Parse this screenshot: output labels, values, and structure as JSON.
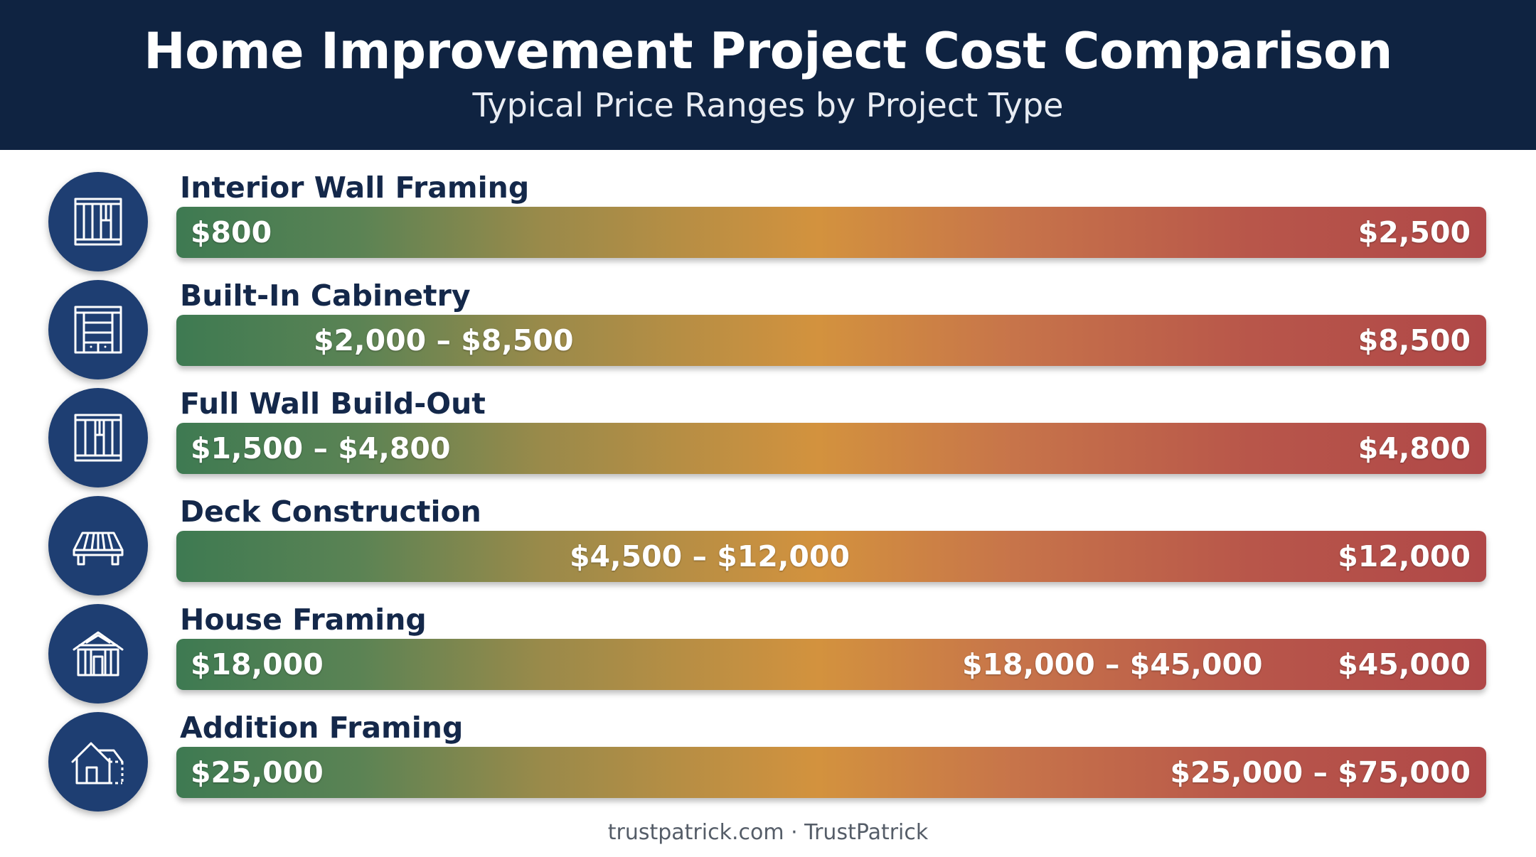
{
  "header": {
    "title": "Home Improvement Project Cost Comparison",
    "subtitle": "Typical Price Ranges by Project Type"
  },
  "footer": {
    "text": "trustpatrick.com · TrustPatrick"
  },
  "colors": {
    "header_bg": "#0f2341",
    "icon_bg": "#1e3e72",
    "label": "#14284a",
    "gradient_low": "#3e7a52",
    "gradient_mid": "#d3923e",
    "gradient_high": "#b04848"
  },
  "chart_data": {
    "type": "bar",
    "title": "Home Improvement Project Cost Comparison",
    "subtitle": "Typical Price Ranges by Project Type",
    "unit": "USD",
    "categories": [
      "Interior Wall Framing",
      "Built-In Cabinetry",
      "Full Wall Build-Out",
      "Deck Construction",
      "House Framing",
      "Addition Framing"
    ],
    "projects": [
      {
        "name": "Interior Wall Framing",
        "icon": "wall-frame-icon",
        "min": 800,
        "max": 2500,
        "labels": [
          {
            "text": "$800",
            "at": "left"
          },
          {
            "text": "$2,500",
            "at": "right"
          }
        ]
      },
      {
        "name": "Built-In Cabinetry",
        "icon": "cabinet-icon",
        "min": 2000,
        "max": 8500,
        "labels": [
          {
            "text": "$2,000 – $8,500",
            "at": 0.105
          },
          {
            "text": "$8,500",
            "at": "right"
          }
        ]
      },
      {
        "name": "Full Wall Build-Out",
        "icon": "wall-build-icon",
        "min": 1500,
        "max": 4800,
        "labels": [
          {
            "text": "$1,500 – $4,800",
            "at": "left"
          },
          {
            "text": "$4,800",
            "at": "right"
          }
        ]
      },
      {
        "name": "Deck Construction",
        "icon": "deck-icon",
        "min": 4500,
        "max": 12000,
        "labels": [
          {
            "text": "$4,500 – $12,000",
            "at": 0.3
          },
          {
            "text": "$12,000",
            "at": "right"
          }
        ]
      },
      {
        "name": "House Framing",
        "icon": "house-frame-icon",
        "min": 18000,
        "max": 45000,
        "labels": [
          {
            "text": "$18,000",
            "at": "left"
          },
          {
            "text": "$18,000 – $45,000",
            "at": 0.6
          },
          {
            "text": "$45,000",
            "at": "right"
          }
        ]
      },
      {
        "name": "Addition Framing",
        "icon": "house-addition-icon",
        "min": 25000,
        "max": 75000,
        "labels": [
          {
            "text": "$25,000",
            "at": "left"
          },
          {
            "text": "$25,000 – $75,000",
            "at": "right"
          }
        ]
      }
    ]
  }
}
